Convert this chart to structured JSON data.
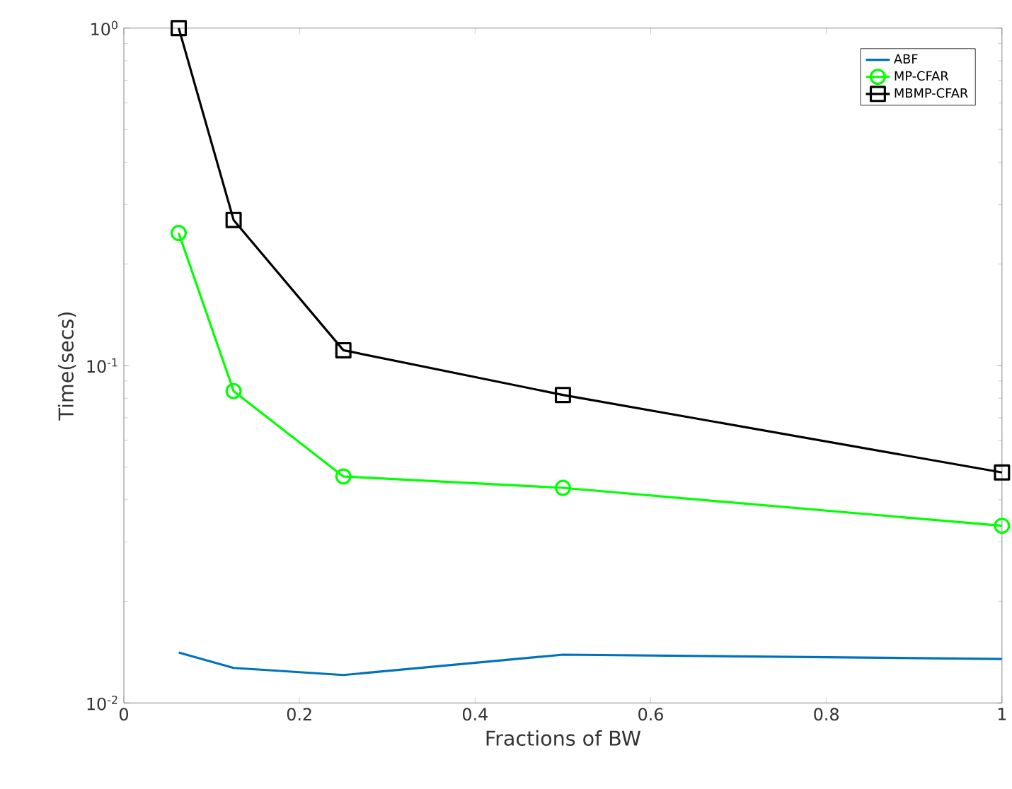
{
  "chart_data": {
    "type": "line",
    "xlabel": "Fractions of BW",
    "ylabel": "Time(secs)",
    "x": [
      0.0625,
      0.125,
      0.25,
      0.5,
      1
    ],
    "series": [
      {
        "name": "ABF",
        "color": "#0072bd",
        "marker": "none",
        "values": [
          0.0141,
          0.0127,
          0.0121,
          0.0139,
          0.0135
        ]
      },
      {
        "name": "MP-CFAR",
        "color": "#00ff00",
        "marker": "circle",
        "values": [
          0.247,
          0.084,
          0.0469,
          0.0434,
          0.0335
        ]
      },
      {
        "name": "MBMP-CFAR",
        "color": "#000000",
        "marker": "square",
        "values": [
          1.0,
          0.27,
          0.111,
          0.0818,
          0.0482
        ]
      }
    ],
    "xlim": [
      0,
      1
    ],
    "ylim": [
      0.01,
      1
    ],
    "xticks": [
      0,
      0.2,
      0.4,
      0.6,
      0.8,
      1
    ],
    "yticks": [
      {
        "value": 0.01,
        "label": "10$^{-2}$"
      },
      {
        "value": 0.1,
        "label": "10$^{-1}$"
      },
      {
        "value": 1,
        "label": "10$^{0}$"
      }
    ],
    "log": "y",
    "grid": false,
    "legend": "top right",
    "line_style": "solid"
  }
}
